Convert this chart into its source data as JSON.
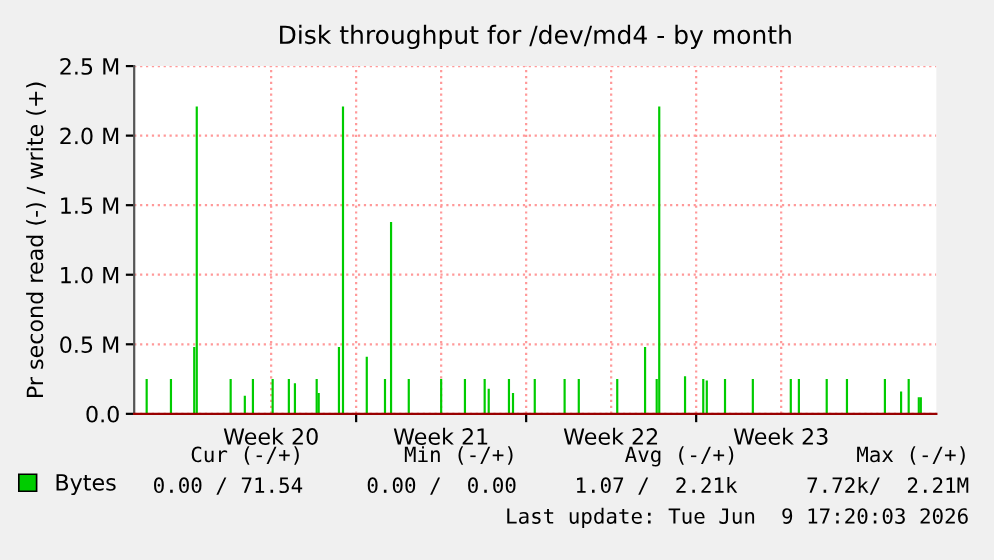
{
  "chart_data": {
    "type": "bar",
    "title": "Disk throughput for /dev/md4 - by month",
    "ylabel": "Pr second read (-) / write (+)",
    "x": [
      "2026-05-09T09:00",
      "2026-05-10T09:00",
      "2026-05-11T08:00",
      "2026-05-11T10:30",
      "2026-05-12T20:00",
      "2026-05-13T10:00",
      "2026-05-13T18:00",
      "2026-05-14T13:30",
      "2026-05-15T05:30",
      "2026-05-15T11:30",
      "2026-05-16T09:00",
      "2026-05-16T11:00",
      "2026-05-17T07:00",
      "2026-05-17T11:00",
      "2026-05-18T10:30",
      "2026-05-19T04:30",
      "2026-05-19T10:30",
      "2026-05-20T04:00",
      "2026-05-21T12:00",
      "2026-05-22T11:30",
      "2026-05-23T07:00",
      "2026-05-23T11:00",
      "2026-05-24T07:00",
      "2026-05-24T11:00",
      "2026-05-25T08:30",
      "2026-05-26T14:00",
      "2026-05-27T04:00",
      "2026-05-28T18:00",
      "2026-05-29T21:30",
      "2026-05-30T09:00",
      "2026-05-30T11:30",
      "2026-05-31T13:00",
      "2026-06-01T07:00",
      "2026-06-01T10:30",
      "2026-06-02T04:30",
      "2026-06-03T08:00",
      "2026-06-04T21:30",
      "2026-06-05T05:30",
      "2026-06-06T09:00",
      "2026-06-07T05:00",
      "2026-06-08T18:30",
      "2026-06-09T10:30",
      "2026-06-09T18:00",
      "2026-06-10T04:00",
      "2026-06-10T06:00"
    ],
    "series": [
      {
        "name": "Bytes",
        "color": "#00cc00",
        "values": [
          250000,
          250000,
          480000,
          2210000,
          250000,
          130000,
          250000,
          250000,
          250000,
          220000,
          250000,
          150000,
          480000,
          2210000,
          410000,
          250000,
          1380000,
          250000,
          250000,
          250000,
          250000,
          180000,
          250000,
          150000,
          250000,
          250000,
          250000,
          250000,
          480000,
          250000,
          2210000,
          270000,
          250000,
          240000,
          250000,
          250000,
          250000,
          250000,
          250000,
          250000,
          250000,
          160000,
          250000,
          120000,
          120000
        ]
      }
    ],
    "xlim": [
      "2026-05-08T20:40",
      "2026-06-10T21:20"
    ],
    "xticks": [
      {
        "value": "2026-05-14T12:00",
        "label": "Week 20"
      },
      {
        "value": "2026-05-18",
        "label": null
      },
      {
        "value": "2026-05-21T12:00",
        "label": "Week 21"
      },
      {
        "value": "2026-05-25",
        "label": null
      },
      {
        "value": "2026-05-28T12:00",
        "label": "Week 22"
      },
      {
        "value": "2026-06-01",
        "label": null
      },
      {
        "value": "2026-06-04T12:00",
        "label": "Week 23"
      }
    ],
    "ylim": [
      0,
      2500000
    ],
    "yticks": [
      {
        "value": 0,
        "label": "0.0"
      },
      {
        "value": 500000,
        "label": "0.5 M"
      },
      {
        "value": 1000000,
        "label": "1.0 M"
      },
      {
        "value": 1500000,
        "label": "1.5 M"
      },
      {
        "value": 2000000,
        "label": "2.0 M"
      },
      {
        "value": 2500000,
        "label": "2.5 M"
      }
    ],
    "grid": true,
    "legend": "bottom left",
    "annotations": [
      "Cur (-/+)",
      "Min (-/+)",
      "Avg (-/+)",
      "Max (-/+)",
      "0.00 / 71.54",
      "0.00 /  0.00",
      "1.07 /  2.21k",
      "7.72k/  2.21M",
      "Last update: Tue Jun  9 17:20:03 2026"
    ]
  }
}
